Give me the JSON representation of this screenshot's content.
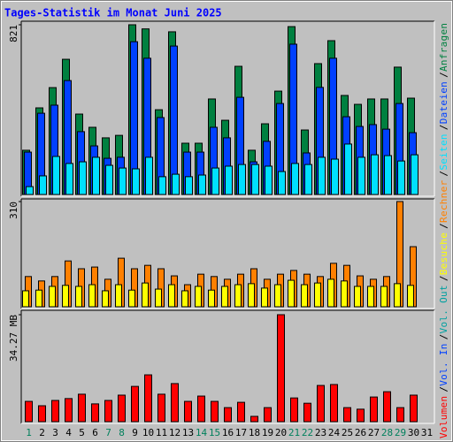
{
  "legend_separator": "/",
  "chart_data": [
    {
      "type": "bar",
      "title": "Tages-Statistik im Monat Juni 2025",
      "ylim": [
        0,
        821
      ],
      "yticks": [
        821
      ],
      "series": [
        {
          "name": "Anfragen",
          "color": "#008040",
          "values": [
            214,
            419,
            517,
            654,
            389,
            325,
            274,
            286,
            821,
            801,
            410,
            787,
            248,
            248,
            462,
            359,
            620,
            214,
            342,
            500,
            812,
            312,
            633,
            744,
            479,
            436,
            462,
            462,
            616,
            466,
            null
          ]
        },
        {
          "name": "Dateien",
          "color": "#0040ff",
          "values": [
            205,
            393,
            432,
            551,
            304,
            235,
            175,
            180,
            739,
            659,
            372,
            718,
            205,
            205,
            325,
            274,
            470,
            158,
            257,
            440,
            727,
            201,
            518,
            659,
            376,
            329,
            338,
            316,
            440,
            299,
            null
          ]
        },
        {
          "name": "Seiten",
          "color": "#00e0ff",
          "values": [
            38,
            90,
            184,
            150,
            158,
            180,
            141,
            128,
            124,
            180,
            86,
            98,
            86,
            94,
            128,
            137,
            145,
            145,
            137,
            111,
            150,
            145,
            180,
            171,
            244,
            180,
            192,
            188,
            162,
            192,
            null
          ]
        }
      ]
    },
    {
      "type": "bar",
      "ylim": [
        0,
        310
      ],
      "yticks": [
        310
      ],
      "series": [
        {
          "name": "Rechner",
          "color": "#ff8000",
          "values": [
            89,
            76,
            89,
            135,
            112,
            117,
            81,
            143,
            112,
            122,
            112,
            91,
            65,
            96,
            89,
            81,
            96,
            112,
            81,
            96,
            107,
            96,
            89,
            128,
            122,
            91,
            81,
            89,
            310,
            177,
            null
          ]
        },
        {
          "name": "Besuche",
          "color": "#ffff00",
          "values": [
            47,
            49,
            60,
            63,
            60,
            65,
            47,
            65,
            49,
            70,
            52,
            65,
            47,
            60,
            49,
            60,
            65,
            68,
            55,
            65,
            78,
            65,
            70,
            81,
            76,
            60,
            60,
            60,
            68,
            63,
            null
          ]
        }
      ]
    },
    {
      "type": "bar",
      "ylim": [
        0,
        34.27
      ],
      "yticks": [
        {
          "value": 34.27,
          "label": "34.27 MB"
        }
      ],
      "categories": [
        "1",
        "2",
        "3",
        "4",
        "5",
        "6",
        "7",
        "8",
        "9",
        "10",
        "11",
        "12",
        "13",
        "14",
        "15",
        "16",
        "17",
        "18",
        "19",
        "20",
        "21",
        "22",
        "23",
        "24",
        "25",
        "26",
        "27",
        "28",
        "29",
        "30",
        "31"
      ],
      "highlight_color": "#00805c",
      "highlight_categories": [
        "1",
        "7",
        "8",
        "14",
        "15",
        "21",
        "22",
        "28",
        "29"
      ],
      "series": [
        {
          "name": "Vol. Out",
          "color": "#00a0a0",
          "values": [
            0,
            0,
            0,
            0,
            0,
            0,
            0,
            0,
            0,
            0,
            0,
            0,
            0,
            0,
            0,
            0,
            0,
            0,
            0,
            0,
            0,
            0,
            0,
            0,
            0,
            0,
            0,
            0,
            0,
            0,
            null
          ]
        },
        {
          "name": "Vol. In",
          "color": "#0040ff",
          "values": [
            0,
            0,
            0,
            0,
            0,
            0,
            0,
            0,
            0,
            0,
            0,
            0,
            0,
            0,
            0,
            0,
            0,
            0,
            0,
            0,
            0,
            0,
            0,
            0,
            0,
            0,
            0,
            0,
            0,
            0,
            null
          ]
        },
        {
          "name": "Volumen",
          "color": "#ff0000",
          "values": [
            6.5,
            5.1,
            6.8,
            7.4,
            8.8,
            5.7,
            6.8,
            8.5,
            11.3,
            15.0,
            8.8,
            12.2,
            6.5,
            8.2,
            6.5,
            4.5,
            6.2,
            1.7,
            4.5,
            34.27,
            7.6,
            5.9,
            11.6,
            11.9,
            4.5,
            4.0,
            7.9,
            9.6,
            4.5,
            8.5,
            null
          ]
        }
      ]
    }
  ]
}
